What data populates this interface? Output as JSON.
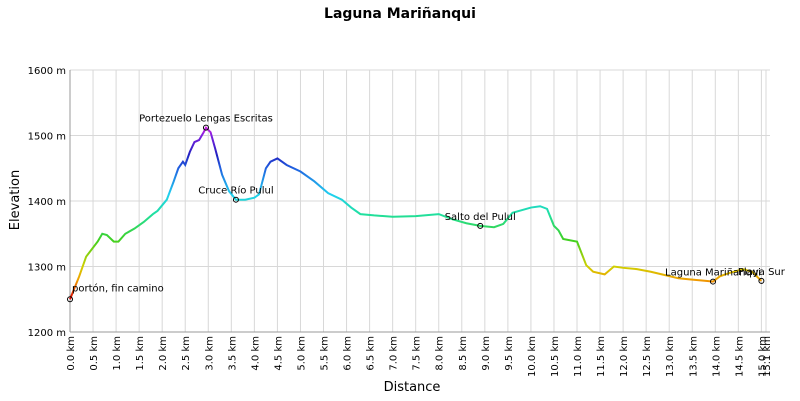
{
  "chart_data": {
    "type": "line",
    "title": "Laguna Mariñanqui",
    "x_label": "Distance",
    "y_label": "Elevation",
    "x": [
      0.0,
      0.2,
      0.35,
      0.6,
      0.7,
      0.8,
      0.95,
      1.05,
      1.2,
      1.4,
      1.6,
      1.8,
      1.9,
      2.1,
      2.25,
      2.35,
      2.45,
      2.5,
      2.6,
      2.7,
      2.8,
      2.9,
      2.95,
      3.05,
      3.15,
      3.3,
      3.45,
      3.6,
      3.8,
      4.0,
      4.1,
      4.25,
      4.35,
      4.5,
      4.7,
      5.0,
      5.3,
      5.6,
      5.9,
      6.1,
      6.3,
      6.6,
      7.0,
      7.5,
      8.0,
      8.3,
      8.6,
      8.9,
      9.2,
      9.4,
      9.6,
      9.8,
      10.0,
      10.2,
      10.35,
      10.5,
      10.6,
      10.7,
      11.0,
      11.1,
      11.2,
      11.35,
      11.6,
      11.8,
      12.0,
      12.3,
      12.6,
      12.9,
      13.2,
      13.5,
      13.8,
      13.95,
      14.1,
      14.3,
      14.6,
      14.8,
      15.0
    ],
    "series": [
      {
        "values": [
          1250,
          1285,
          1315,
          1338,
          1350,
          1348,
          1338,
          1338,
          1350,
          1358,
          1368,
          1380,
          1385,
          1402,
          1430,
          1450,
          1460,
          1455,
          1475,
          1490,
          1493,
          1505,
          1512,
          1505,
          1480,
          1440,
          1415,
          1402,
          1402,
          1405,
          1410,
          1450,
          1460,
          1465,
          1455,
          1445,
          1430,
          1412,
          1402,
          1390,
          1380,
          1378,
          1376,
          1377,
          1380,
          1372,
          1366,
          1362,
          1360,
          1365,
          1382,
          1386,
          1390,
          1392,
          1388,
          1362,
          1355,
          1342,
          1338,
          1320,
          1302,
          1292,
          1288,
          1300,
          1298,
          1296,
          1292,
          1287,
          1282,
          1280,
          1278,
          1277,
          1285,
          1290,
          1296,
          1292,
          1278
        ]
      }
    ],
    "color_scale": [
      {
        "value": 1250,
        "color": "#e00000"
      },
      {
        "value": 1280,
        "color": "#f0a000"
      },
      {
        "value": 1300,
        "color": "#d0d000"
      },
      {
        "value": 1340,
        "color": "#40d020"
      },
      {
        "value": 1380,
        "color": "#20e0a0"
      },
      {
        "value": 1410,
        "color": "#20d0f0"
      },
      {
        "value": 1450,
        "color": "#2060e0"
      },
      {
        "value": 1470,
        "color": "#2020c0"
      },
      {
        "value": 1500,
        "color": "#8020e0"
      },
      {
        "value": 1515,
        "color": "#e020e0"
      }
    ],
    "annotations": [
      {
        "label": "portón, fin camino",
        "x": 0.0,
        "y": 1250
      },
      {
        "label": "Portezuelo Lengas Escritas",
        "x": 2.95,
        "y": 1512
      },
      {
        "label": "Cruce Río Pulul",
        "x": 3.6,
        "y": 1402
      },
      {
        "label": "Salto del Pulul",
        "x": 8.9,
        "y": 1362
      },
      {
        "label": "Laguna Mariñanqui",
        "x": 13.95,
        "y": 1277
      },
      {
        "label": "Playa Sur",
        "x": 15.0,
        "y": 1278
      }
    ],
    "xlim": [
      0,
      15.1
    ],
    "ylim": [
      1200,
      1600
    ],
    "grid": true,
    "yticks": [
      {
        "value": 1200,
        "label": "1200 m"
      },
      {
        "value": 1300,
        "label": "1300 m"
      },
      {
        "value": 1400,
        "label": "1400 m"
      },
      {
        "value": 1500,
        "label": "1500 m"
      },
      {
        "value": 1600,
        "label": "1600 m"
      }
    ],
    "xticks": [
      {
        "value": 0,
        "label": "0.0 km"
      },
      {
        "value": 0.5,
        "label": "0.5 km"
      },
      {
        "value": 1,
        "label": "1.0 km"
      },
      {
        "value": 1.5,
        "label": "1.5 km"
      },
      {
        "value": 2,
        "label": "2.0 km"
      },
      {
        "value": 2.5,
        "label": "2.5 km"
      },
      {
        "value": 3,
        "label": "3.0 km"
      },
      {
        "value": 3.5,
        "label": "3.5 km"
      },
      {
        "value": 4,
        "label": "4.0 km"
      },
      {
        "value": 4.5,
        "label": "4.5 km"
      },
      {
        "value": 5,
        "label": "5.0 km"
      },
      {
        "value": 5.5,
        "label": "5.5 km"
      },
      {
        "value": 6,
        "label": "6.0 km"
      },
      {
        "value": 6.5,
        "label": "6.5 km"
      },
      {
        "value": 7,
        "label": "7.0 km"
      },
      {
        "value": 7.5,
        "label": "7.5 km"
      },
      {
        "value": 8,
        "label": "8.0 km"
      },
      {
        "value": 8.5,
        "label": "8.5 km"
      },
      {
        "value": 9,
        "label": "9.0 km"
      },
      {
        "value": 9.5,
        "label": "9.5 km"
      },
      {
        "value": 10,
        "label": "10.0 km"
      },
      {
        "value": 10.5,
        "label": "10.5 km"
      },
      {
        "value": 11,
        "label": "11.0 km"
      },
      {
        "value": 11.5,
        "label": "11.5 km"
      },
      {
        "value": 12,
        "label": "12.0 km"
      },
      {
        "value": 12.5,
        "label": "12.5 km"
      },
      {
        "value": 13,
        "label": "13.0 km"
      },
      {
        "value": 13.5,
        "label": "13.5 km"
      },
      {
        "value": 14,
        "label": "14.0 km"
      },
      {
        "value": 14.5,
        "label": "14.5 km"
      },
      {
        "value": 15,
        "label": "15.0 km"
      },
      {
        "value": 15.1,
        "label": "15.1 km"
      }
    ]
  }
}
